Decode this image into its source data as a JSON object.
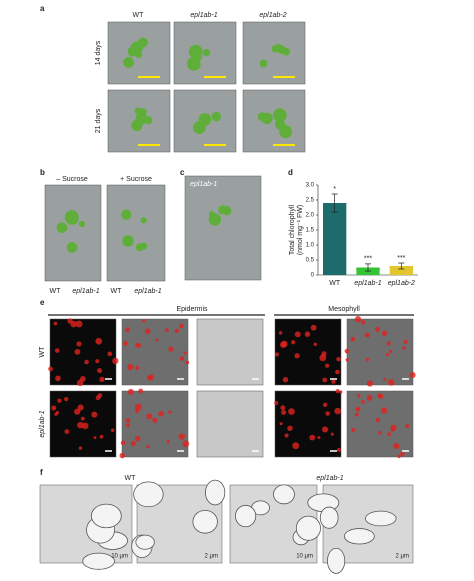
{
  "panel_labels": [
    "a",
    "b",
    "c",
    "d",
    "e",
    "f"
  ],
  "panel_a": {
    "columns": [
      "WT",
      "epl1ab-1",
      "epl1ab-2"
    ],
    "rows": [
      "14 days",
      "21 days"
    ]
  },
  "panel_b": {
    "conditions": [
      "– Sucrose",
      "+ Sucrose"
    ],
    "genotypes": [
      "WT",
      "epl1ab-1",
      "WT",
      "epl1ab-1"
    ]
  },
  "panel_c": {
    "label": "epl1ab-1"
  },
  "chart_data": {
    "type": "bar",
    "y_label": [
      "Total chlorophyll",
      "(nmol mg⁻¹ FW)"
    ],
    "categories": [
      "WT",
      "epl1ab-1",
      "epl1ab-2"
    ],
    "values": [
      2.4,
      0.25,
      0.3
    ],
    "errors": [
      0.3,
      0.12,
      0.1
    ],
    "annotations": [
      "*",
      "***",
      "***"
    ],
    "colors": [
      "#1d6b6b",
      "#35c435",
      "#e3c52e"
    ],
    "ylim": [
      0,
      3
    ],
    "yticks": [
      0,
      0.5,
      {
        "value": 1,
        "label": "1.0"
      },
      1.5,
      {
        "value": 2,
        "label": "2.0"
      },
      2.5,
      {
        "value": 3,
        "label": "3.0"
      }
    ]
  },
  "panel_e": {
    "groups": [
      "Epidermis",
      "Mesophyll"
    ],
    "rows": [
      "WT",
      "epl1ab-1"
    ]
  },
  "panel_f": {
    "genotypes": [
      "WT",
      "epl1ab-1"
    ],
    "scale_bars": [
      "10 μm",
      "2 μm",
      "10 μm",
      "2 μm"
    ]
  }
}
